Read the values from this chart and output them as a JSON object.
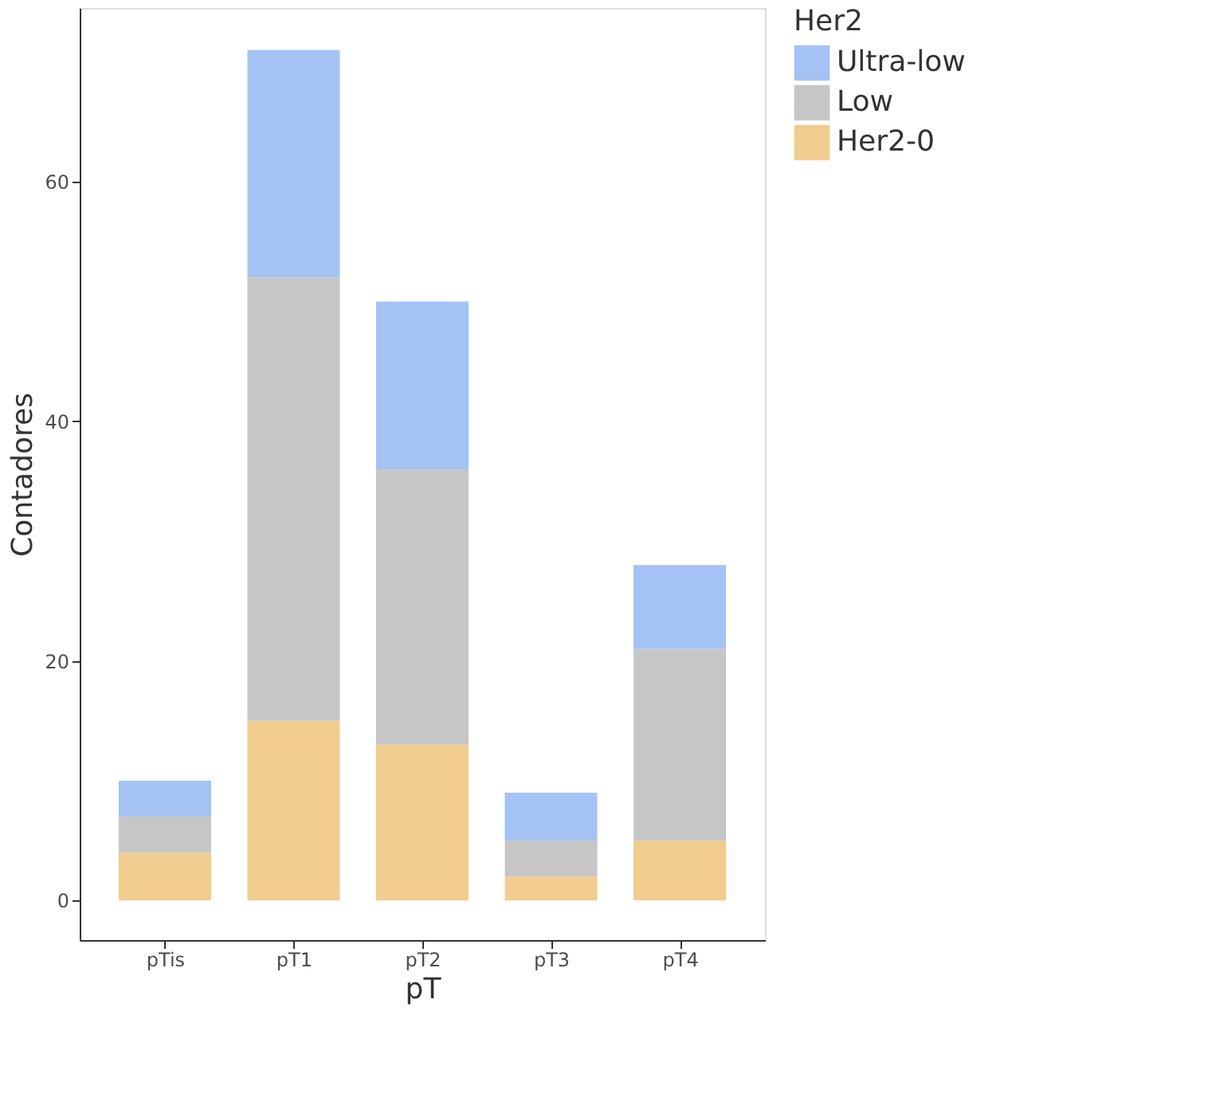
{
  "chart_data": {
    "type": "bar",
    "stacked": true,
    "xlabel": "pT",
    "ylabel": "Contadores",
    "legend_title": "Her2",
    "categories": [
      "pTis",
      "pT1",
      "pT2",
      "pT3",
      "pT4"
    ],
    "series": [
      {
        "name": "Her2-0",
        "color": "#f0cc8e",
        "values": [
          4,
          15,
          13,
          2,
          5
        ]
      },
      {
        "name": "Low",
        "color": "#c6c6c6",
        "values": [
          3,
          37,
          23,
          3,
          16
        ]
      },
      {
        "name": "Ultra-low",
        "color": "#a4c2f4",
        "values": [
          3,
          19,
          14,
          4,
          7
        ]
      }
    ],
    "ylim": [
      -3.3,
      74.5
    ],
    "yticks": [
      0,
      20,
      40,
      60
    ],
    "grid": false,
    "legend": "right"
  }
}
